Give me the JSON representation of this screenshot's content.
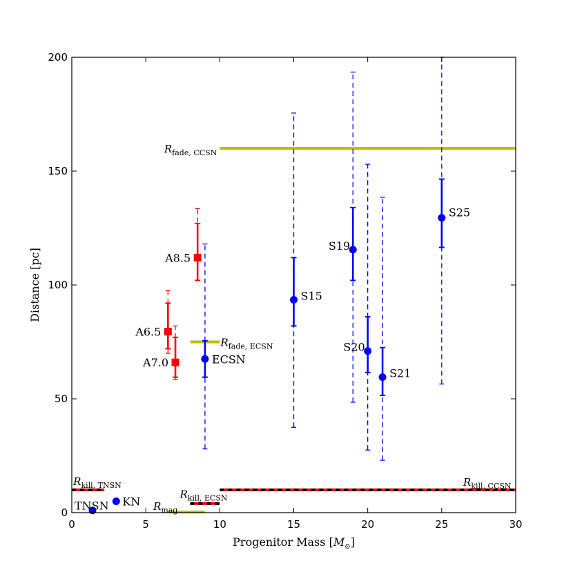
{
  "chart_data": {
    "type": "scatter",
    "xlabel": "Progenitor Mass [M⊙]",
    "ylabel": "Distance [pc]",
    "xlim": [
      0,
      30
    ],
    "ylim": [
      0,
      200
    ],
    "xticks": [
      0,
      5,
      10,
      15,
      20,
      25,
      30
    ],
    "yticks": [
      0,
      50,
      100,
      150,
      200
    ],
    "grid": false,
    "series": [
      {
        "marker": "square",
        "color": "#ff0000",
        "points": [
          {
            "label": "A6.5",
            "x": 6.5,
            "y": 79.5,
            "inner": [
              72,
              92
            ],
            "outer": [
              70,
              97.5
            ]
          },
          {
            "label": "A7.0",
            "x": 7.0,
            "y": 66,
            "inner": [
              59.5,
              77
            ],
            "outer": [
              58.5,
              82
            ]
          },
          {
            "label": "A8.5",
            "x": 8.5,
            "y": 112,
            "inner": [
              102,
              127
            ],
            "outer": [
              102,
              133.5
            ]
          }
        ]
      },
      {
        "marker": "circle",
        "color": "#0000ff",
        "points": [
          {
            "label": "ECSN",
            "x": 9.0,
            "y": 67.5,
            "inner": [
              59.5,
              75.5
            ],
            "outer": [
              28,
              118
            ]
          },
          {
            "label": "S15",
            "x": 15.0,
            "y": 93.5,
            "inner": [
              82,
              112
            ],
            "outer": [
              37.5,
              175.5
            ]
          },
          {
            "label": "S19",
            "x": 19.0,
            "y": 115.5,
            "inner": [
              102,
              134
            ],
            "outer": [
              48.5,
              193.5
            ]
          },
          {
            "label": "S20",
            "x": 20.0,
            "y": 71,
            "inner": [
              61.5,
              86
            ],
            "outer": [
              27.5,
              153
            ]
          },
          {
            "label": "S21",
            "x": 21.0,
            "y": 59.5,
            "inner": [
              51.5,
              72.5
            ],
            "outer": [
              23,
              138.5
            ]
          },
          {
            "label": "S25",
            "x": 25.0,
            "y": 129.5,
            "inner": [
              116.5,
              146.5
            ],
            "outer": [
              56.5,
              200
            ]
          },
          {
            "label": "TNSN",
            "x": 1.4,
            "y": 1
          },
          {
            "label": "KN",
            "x": 3.0,
            "y": 5
          }
        ]
      }
    ],
    "lines": [
      {
        "label_main": "R",
        "label_sub": "fade, CCSN",
        "y": 160,
        "x": [
          10,
          30
        ],
        "color": "#bfbf00",
        "style": "solid"
      },
      {
        "label_main": "R",
        "label_sub": "fade, ECSN",
        "y": 75,
        "x": [
          8,
          10
        ],
        "color": "#bfbf00",
        "style": "solid"
      },
      {
        "label_main": "R",
        "label_sub": "mag",
        "y": 0,
        "x": [
          6.5,
          9.0
        ],
        "color": "#bfbf00",
        "style": "solid"
      },
      {
        "label_main": "R",
        "label_sub": "kill, TNSN",
        "y": 10,
        "x": [
          0,
          2.2
        ],
        "color": "#ff0000",
        "style": "dashed-black-red"
      },
      {
        "label_main": "R",
        "label_sub": "kill, ECSN",
        "y": 4,
        "x": [
          8,
          10
        ],
        "color": "#ff0000",
        "style": "dashed-black-red"
      },
      {
        "label_main": "R",
        "label_sub": "kill, CCSN",
        "y": 10,
        "x": [
          10,
          30
        ],
        "color": "#ff0000",
        "style": "dashed-black-red"
      }
    ]
  }
}
